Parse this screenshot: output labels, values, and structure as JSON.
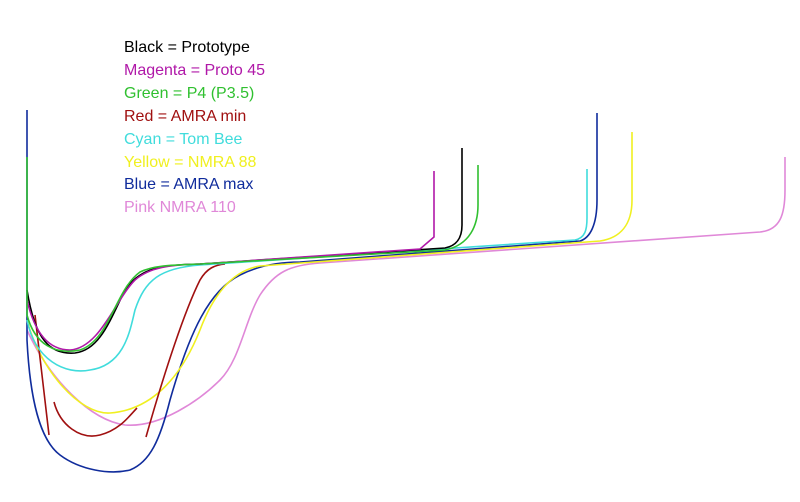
{
  "legend": [
    {
      "text": "Black = Prototype",
      "color": "#000000"
    },
    {
      "text": "Magenta = Proto 45",
      "color": "#b018a8"
    },
    {
      "text": "Green = P4 (P3.5)",
      "color": "#30c030"
    },
    {
      "text": "Red = AMRA min",
      "color": "#a01010"
    },
    {
      "text": "Cyan = Tom Bee",
      "color": "#40dcdc"
    },
    {
      "text": "Yellow = NMRA 88",
      "color": "#f0f020"
    },
    {
      "text": "Blue = AMRA max",
      "color": "#102c9c"
    },
    {
      "text": "Pink NMRA 110",
      "color": "#e088d8"
    }
  ]
}
